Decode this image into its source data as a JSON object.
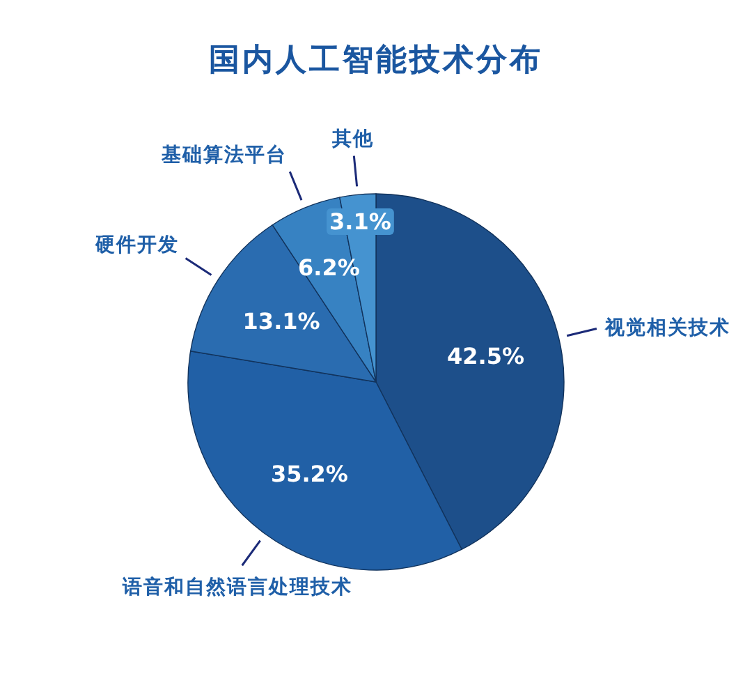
{
  "chart_data": {
    "type": "pie",
    "title": "国内人工智能技术分布",
    "categories": [
      "视觉相关技术",
      "语音和自然语言处理技术",
      "硬件开发",
      "基础算法平台",
      "其他"
    ],
    "values": [
      42.5,
      35.2,
      13.1,
      6.2,
      3.1
    ],
    "value_labels": [
      "42.5%",
      "35.2%",
      "13.1%",
      "6.2%",
      "3.1%"
    ],
    "colors": [
      "#1d4f8a",
      "#2160a6",
      "#2a6cb0",
      "#3782c2",
      "#4593d0"
    ]
  }
}
